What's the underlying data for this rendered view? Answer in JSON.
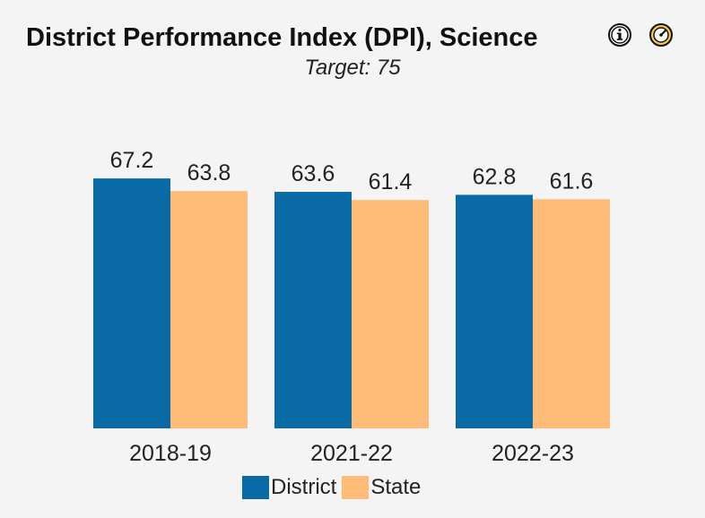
{
  "header": {
    "title": "District Performance Index (DPI), Science",
    "subtitle": "Target: 75",
    "icons": [
      "info-icon",
      "gauge-icon"
    ]
  },
  "legend": {
    "district_label": "District",
    "state_label": "State"
  },
  "colors": {
    "district": "#0a6aa5",
    "state": "#ffbb78",
    "background": "#f4f4f4"
  },
  "chart_data": {
    "type": "bar",
    "title": "District Performance Index (DPI), Science",
    "subtitle": "Target: 75",
    "categories": [
      "2018-19",
      "2021-22",
      "2022-23"
    ],
    "series": [
      {
        "name": "District",
        "values": [
          67.2,
          63.6,
          62.8
        ]
      },
      {
        "name": "State",
        "values": [
          63.8,
          61.4,
          61.6
        ]
      }
    ],
    "data_labels": true,
    "legend_position": "bottom",
    "grid": false,
    "ylim": [
      0,
      100
    ]
  }
}
